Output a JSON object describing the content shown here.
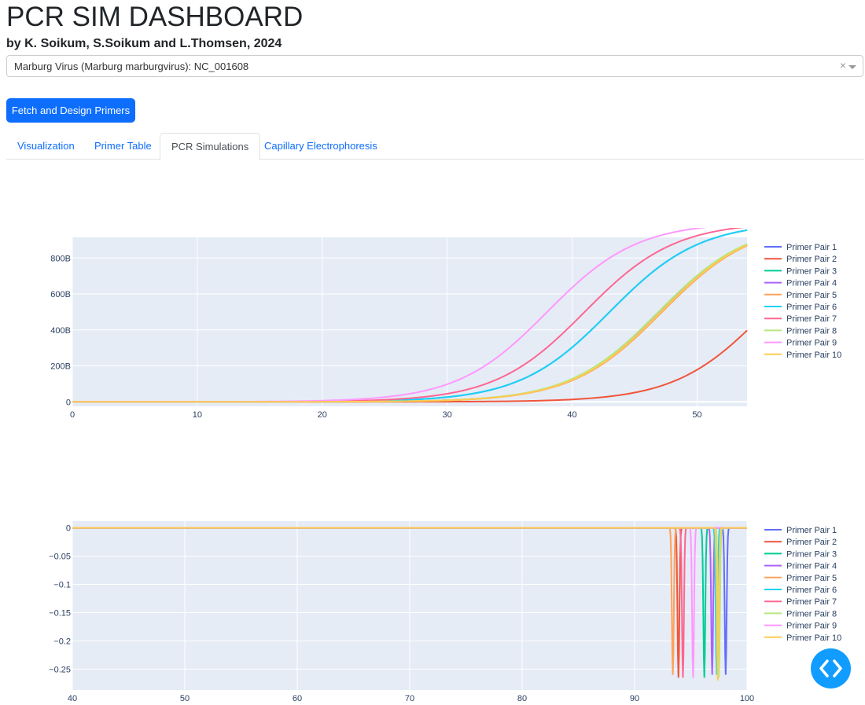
{
  "header": {
    "title": "PCR SIM DASHBOARD",
    "subtitle": "by K. Soikum, S.Soikum and L.Thomsen, 2024"
  },
  "dropdown": {
    "selected": "Marburg Virus (Marburg marburgvirus): NC_001608",
    "clear_glyph": "×"
  },
  "actions": {
    "fetch_label": "Fetch and Design Primers"
  },
  "tabs": [
    {
      "label": "Visualization",
      "active": false
    },
    {
      "label": "Primer Table",
      "active": false
    },
    {
      "label": "PCR Simulations",
      "active": true
    },
    {
      "label": "Capillary Electrophoresis",
      "active": false
    }
  ],
  "fab": {
    "icon": "code-brackets-icon",
    "color": "#119dff"
  },
  "chart_data": [
    {
      "type": "line",
      "title": "",
      "xlabel": "",
      "ylabel": "",
      "xlim": [
        0,
        54
      ],
      "ylim": [
        -25,
        915
      ],
      "x_ticks": [
        0,
        10,
        20,
        30,
        40,
        50
      ],
      "y_ticks": [
        0,
        200,
        400,
        600,
        800
      ],
      "y_tick_labels": [
        "0",
        "200B",
        "400B",
        "600B",
        "800B"
      ],
      "y_unit": "billions",
      "legend": "right",
      "background": "#e5ecf6",
      "series": [
        {
          "name": "Primer Pair 1",
          "color": "#636efa",
          "midpoint": 43.0,
          "scale": 3.6,
          "max": 1000
        },
        {
          "name": "Primer Pair 2",
          "color": "#ef553b",
          "midpoint": 55.5,
          "scale": 3.6,
          "max": 1000
        },
        {
          "name": "Primer Pair 3",
          "color": "#00cc96",
          "midpoint": 47.0,
          "scale": 3.6,
          "max": 1000
        },
        {
          "name": "Primer Pair 4",
          "color": "#ab63fa",
          "midpoint": 47.0,
          "scale": 3.6,
          "max": 1000
        },
        {
          "name": "Primer Pair 5",
          "color": "#ffa15a",
          "midpoint": 47.2,
          "scale": 3.6,
          "max": 1000
        },
        {
          "name": "Primer Pair 6",
          "color": "#19d3f3",
          "midpoint": 43.0,
          "scale": 3.6,
          "max": 1000
        },
        {
          "name": "Primer Pair 7",
          "color": "#ff6692",
          "midpoint": 41.0,
          "scale": 3.6,
          "max": 1000
        },
        {
          "name": "Primer Pair 8",
          "color": "#b6e880",
          "midpoint": 46.9,
          "scale": 3.6,
          "max": 1000
        },
        {
          "name": "Primer Pair 9",
          "color": "#ff97ff",
          "midpoint": 38.0,
          "scale": 3.6,
          "max": 1000
        },
        {
          "name": "Primer Pair 10",
          "color": "#fecb52",
          "midpoint": 47.1,
          "scale": 3.6,
          "max": 1000
        }
      ]
    },
    {
      "type": "line",
      "title": "",
      "xlabel": "",
      "ylabel": "",
      "xlim": [
        40,
        100
      ],
      "ylim": [
        -0.287,
        0.012
      ],
      "x_ticks": [
        40,
        50,
        60,
        70,
        80,
        90,
        100
      ],
      "y_ticks": [
        0,
        -0.05,
        -0.1,
        -0.15,
        -0.2,
        -0.25
      ],
      "y_tick_labels": [
        "0",
        "−0.05",
        "−0.1",
        "−0.15",
        "−0.2",
        "−0.25"
      ],
      "legend": "right",
      "background": "#e5ecf6",
      "series": [
        {
          "name": "Primer Pair 1",
          "color": "#636efa",
          "peak_x": 98.1,
          "depth": -0.26
        },
        {
          "name": "Primer Pair 2",
          "color": "#ef553b",
          "peak_x": 93.9,
          "depth": -0.265
        },
        {
          "name": "Primer Pair 3",
          "color": "#00cc96",
          "peak_x": 96.2,
          "depth": -0.265
        },
        {
          "name": "Primer Pair 4",
          "color": "#ab63fa",
          "peak_x": 96.9,
          "depth": -0.26
        },
        {
          "name": "Primer Pair 5",
          "color": "#ffa15a",
          "peak_x": 93.4,
          "depth": -0.26
        },
        {
          "name": "Primer Pair 6",
          "color": "#19d3f3",
          "peak_x": 97.3,
          "depth": -0.26
        },
        {
          "name": "Primer Pair 7",
          "color": "#ff6692",
          "peak_x": 94.3,
          "depth": -0.265
        },
        {
          "name": "Primer Pair 8",
          "color": "#b6e880",
          "peak_x": 97.5,
          "depth": -0.265
        },
        {
          "name": "Primer Pair 9",
          "color": "#ff97ff",
          "peak_x": 95.2,
          "depth": -0.265
        },
        {
          "name": "Primer Pair 10",
          "color": "#fecb52",
          "peak_x": 97.4,
          "depth": -0.27
        }
      ]
    }
  ]
}
